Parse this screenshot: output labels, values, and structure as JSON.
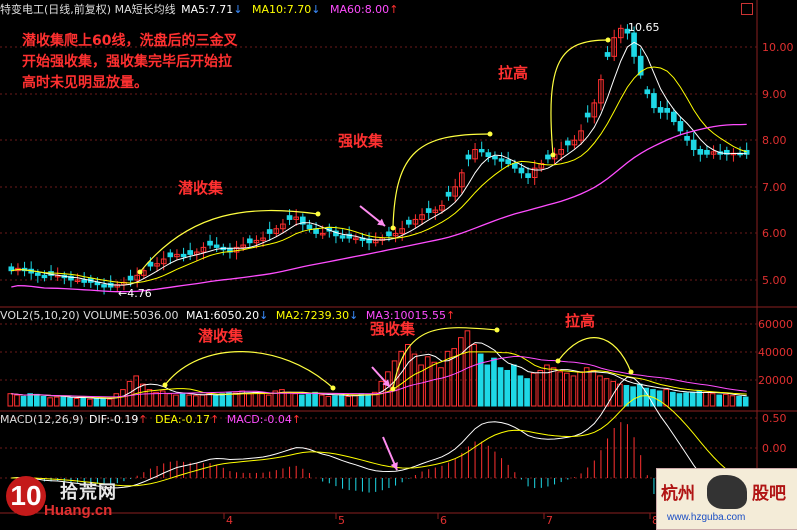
{
  "main": {
    "title": "特变电工(日线,前复权) MA短长均线",
    "ma5": "MA5:7.71",
    "ma10": "MA10:7.70",
    "ma60": "MA60:8.00"
  },
  "volume": {
    "title": "VOL2(5,10,20)",
    "value": "VOLUME:5036.00",
    "ma1": "MA1:6050.20",
    "ma2": "MA2:7239.30",
    "ma3": "MA3:10015.55"
  },
  "macd": {
    "title": "MACD(12,26,9)",
    "dif": "DIF:-0.19",
    "dea": "DEA:-0.17",
    "macd": "MACD:-0.04"
  },
  "annotations": {
    "note_line1": "潜收集爬上60线，洗盘后的三金叉",
    "note_line2": "开始强收集，强收集完毕后开始拉",
    "note_line3": "高时未见明显放量。",
    "qian": "潜收集",
    "qiang": "强收集",
    "lagao": "拉高",
    "low_label": "4.76",
    "high_label": "10.65"
  },
  "colors": {
    "up": "#ff3030",
    "down": "#1ed8e6",
    "ma5": "#ffffff",
    "ma10": "#ffff00",
    "ma60": "#ff4dff",
    "annotation_text": "#ff3030",
    "arrow": "#ff8cf0"
  },
  "watermark": {
    "shihuang_name": "拾荒网",
    "shihuang_domain": "Huang.cn",
    "hz_left": "杭州",
    "hz_right": "股吧",
    "hz_domain": "www.hzguba.com"
  },
  "chart_data": [
    {
      "type": "candlestick",
      "ylabel": "",
      "ylim": [
        4.5,
        10.8
      ],
      "yticks": [
        "10.00",
        "9.00",
        "8.00",
        "7.00",
        "6.00",
        "5.00"
      ],
      "xticks": [
        "4",
        "5",
        "6",
        "7",
        "8"
      ],
      "low": 4.76,
      "high": 10.65,
      "close_approx": [
        5.2,
        5.25,
        5.2,
        5.15,
        5.1,
        5.05,
        5.1,
        5.1,
        5.05,
        5.0,
        5.0,
        4.95,
        4.95,
        4.9,
        4.85,
        4.85,
        4.9,
        4.95,
        5.0,
        5.1,
        5.2,
        5.3,
        5.35,
        5.45,
        5.5,
        5.55,
        5.5,
        5.55,
        5.6,
        5.7,
        5.75,
        5.7,
        5.65,
        5.6,
        5.7,
        5.75,
        5.8,
        5.85,
        5.9,
        6.0,
        6.1,
        6.2,
        6.3,
        6.35,
        6.2,
        6.1,
        6.0,
        6.0,
        6.05,
        5.95,
        5.9,
        5.9,
        5.9,
        5.85,
        5.8,
        5.85,
        5.9,
        5.95,
        6.0,
        6.1,
        6.2,
        6.3,
        6.4,
        6.45,
        6.5,
        6.6,
        6.8,
        7.0,
        7.3,
        7.6,
        7.8,
        7.75,
        7.65,
        7.6,
        7.55,
        7.5,
        7.4,
        7.3,
        7.2,
        7.4,
        7.5,
        7.6,
        7.7,
        7.8,
        7.9,
        8.0,
        8.2,
        8.5,
        8.8,
        9.3,
        9.8,
        10.2,
        10.4,
        10.3,
        9.8,
        9.4,
        9.0,
        8.7,
        8.6,
        8.6,
        8.4,
        8.2,
        8.0,
        7.8,
        7.7,
        7.7,
        7.75,
        7.7,
        7.7,
        7.72,
        7.71,
        7.7
      ],
      "series": [
        {
          "name": "MA5",
          "value": 7.71
        },
        {
          "name": "MA10",
          "value": 7.7
        },
        {
          "name": "MA60",
          "value": 8.0
        }
      ]
    },
    {
      "type": "bar",
      "ylim": [
        0,
        65000
      ],
      "yticks": [
        "60000",
        "40000",
        "20000"
      ],
      "values_approx": [
        9000,
        8000,
        7000,
        9000,
        8500,
        7000,
        6000,
        6500,
        7000,
        6000,
        5500,
        6000,
        5000,
        5500,
        6000,
        5000,
        9000,
        12000,
        18000,
        22000,
        16000,
        12000,
        10000,
        11000,
        9000,
        8000,
        9500,
        8000,
        7500,
        8000,
        9000,
        8000,
        9000,
        10000,
        9500,
        11000,
        9000,
        10000,
        9000,
        8000,
        11000,
        12000,
        10000,
        9000,
        8000,
        9000,
        10000,
        8000,
        7000,
        7500,
        8000,
        7000,
        8000,
        9000,
        8500,
        10000,
        18000,
        25000,
        33000,
        40000,
        45000,
        38000,
        30000,
        36000,
        32000,
        28000,
        40000,
        42000,
        50000,
        55000,
        45000,
        38000,
        30000,
        35000,
        28000,
        26000,
        30000,
        22000,
        20000,
        24000,
        26000,
        30000,
        28000,
        25000,
        24000,
        22000,
        25000,
        28000,
        26000,
        22000,
        20000,
        18000,
        16000,
        15000,
        14000,
        16000,
        13000,
        12000,
        11000,
        12000,
        10000,
        9000,
        9500,
        10000,
        11000,
        10000,
        9000,
        8000,
        8500,
        7500,
        7000,
        6500
      ],
      "series": [
        {
          "name": "MA1",
          "value": 6050.2
        },
        {
          "name": "MA2",
          "value": 7239.3
        },
        {
          "name": "MA3",
          "value": 10015.55
        }
      ]
    },
    {
      "type": "bar",
      "ylim": [
        -0.3,
        0.7
      ],
      "yticks": [
        "0.50",
        "0.00"
      ],
      "series": [
        {
          "name": "DIF",
          "value": -0.19
        },
        {
          "name": "DEA",
          "value": -0.17
        },
        {
          "name": "MACD",
          "value": -0.04
        }
      ]
    }
  ]
}
